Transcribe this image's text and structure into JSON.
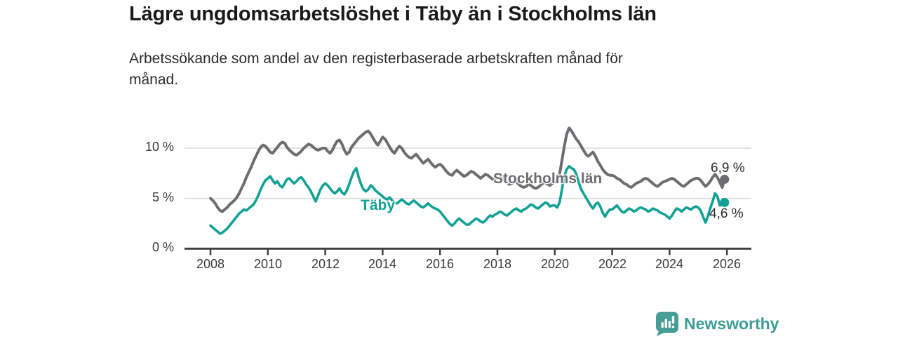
{
  "header": {
    "title": "Lägre ungdomsarbetslöshet i Täby än i Stockholms län",
    "subtitle": "Arbetssökande som andel av den registerbaserade arbetskraften månad för\nmånad."
  },
  "chart": {
    "y_axis": {
      "values": [
        0,
        5,
        10
      ],
      "labels": [
        "0 %",
        "5 %",
        "10 %"
      ]
    },
    "x_axis": {
      "ticks": [
        2008,
        2010,
        2012,
        2014,
        2016,
        2018,
        2020,
        2022,
        2024,
        2026
      ]
    },
    "series_labels": {
      "stockholm": "Stockholms län",
      "taby": "Täby"
    },
    "end_labels": {
      "stockholm": "6,9 %",
      "taby": "4,6 %"
    }
  },
  "theme": {
    "stockholm_color": "#6D6D71",
    "taby_color": "#13A195",
    "grid_color": "#DCDCDC",
    "axis_color": "#3F3F3F",
    "text_color": "#3A3A3A",
    "brand_color": "#469E97"
  },
  "footer": {
    "brand": "Newsworthy"
  },
  "chart_data": {
    "type": "line",
    "title": "Lägre ungdomsarbetslöshet i Täby än i Stockholms län",
    "subtitle": "Arbetssökande som andel av den registerbaserade arbetskraften månad för månad.",
    "unit": "%",
    "frequency": "monthly",
    "x_start": "2008-01",
    "x_end": "2025-12",
    "xlim": [
      2007.1,
      2026.9
    ],
    "ylim": [
      0,
      12.5
    ],
    "y_ticks": [
      0,
      5,
      10
    ],
    "x_ticks": [
      2008,
      2010,
      2012,
      2014,
      2016,
      2018,
      2020,
      2022,
      2024,
      2026
    ],
    "grid": true,
    "legend_position": "inline-labels",
    "latest_values": {
      "Stockholms län": 6.9,
      "Täby": 4.6
    },
    "series": [
      {
        "name": "Stockholms län",
        "color": "#6D6D71",
        "values": [
          5.0,
          4.8,
          4.5,
          4.1,
          3.8,
          3.7,
          3.9,
          4.1,
          4.4,
          4.6,
          4.8,
          5.1,
          5.5,
          6.0,
          6.5,
          7.1,
          7.6,
          8.1,
          8.7,
          9.2,
          9.7,
          10.1,
          10.3,
          10.2,
          9.9,
          9.6,
          9.5,
          9.8,
          10.1,
          10.4,
          10.6,
          10.5,
          10.1,
          9.8,
          9.6,
          9.4,
          9.3,
          9.5,
          9.7,
          10.0,
          10.2,
          10.4,
          10.3,
          10.1,
          9.9,
          9.8,
          9.9,
          10.0,
          10.0,
          9.7,
          9.5,
          9.8,
          10.3,
          10.7,
          10.8,
          10.4,
          9.8,
          9.4,
          9.6,
          10.1,
          10.4,
          10.7,
          11.0,
          11.2,
          11.4,
          11.6,
          11.7,
          11.4,
          11.0,
          10.6,
          10.3,
          10.7,
          11.1,
          10.9,
          10.5,
          10.1,
          9.7,
          9.5,
          9.9,
          10.2,
          10.0,
          9.6,
          9.3,
          9.1,
          9.0,
          9.2,
          9.4,
          9.1,
          8.8,
          8.5,
          8.7,
          8.9,
          8.6,
          8.3,
          8.1,
          8.3,
          8.4,
          8.2,
          7.9,
          7.6,
          7.4,
          7.3,
          7.6,
          7.8,
          7.6,
          7.4,
          7.2,
          7.3,
          7.5,
          7.7,
          7.6,
          7.4,
          7.2,
          7.0,
          7.2,
          7.4,
          7.3,
          7.1,
          6.9,
          6.8,
          7.0,
          7.1,
          7.0,
          6.8,
          6.6,
          6.4,
          6.5,
          6.7,
          6.6,
          6.4,
          6.2,
          6.1,
          6.2,
          6.4,
          6.3,
          6.1,
          6.0,
          6.1,
          6.3,
          6.5,
          6.6,
          6.4,
          6.3,
          6.5,
          6.6,
          6.8,
          7.4,
          8.8,
          10.2,
          11.4,
          12.0,
          11.7,
          11.3,
          10.9,
          10.6,
          10.2,
          9.8,
          9.4,
          9.2,
          9.4,
          9.6,
          9.2,
          8.7,
          8.3,
          7.9,
          7.6,
          7.4,
          7.3,
          7.3,
          7.2,
          7.0,
          6.9,
          6.7,
          6.5,
          6.4,
          6.2,
          6.1,
          6.3,
          6.5,
          6.6,
          6.7,
          6.9,
          7.0,
          6.9,
          6.7,
          6.5,
          6.3,
          6.2,
          6.4,
          6.6,
          6.7,
          6.8,
          6.9,
          7.0,
          6.9,
          6.7,
          6.5,
          6.3,
          6.2,
          6.4,
          6.6,
          6.8,
          6.9,
          7.0,
          7.0,
          6.8,
          6.5,
          6.2,
          6.4,
          6.7,
          7.1,
          7.4,
          7.1,
          6.6,
          6.1,
          6.9
        ]
      },
      {
        "name": "Täby",
        "color": "#13A195",
        "values": [
          2.3,
          2.1,
          1.9,
          1.7,
          1.5,
          1.6,
          1.8,
          2.0,
          2.3,
          2.6,
          2.9,
          3.2,
          3.5,
          3.7,
          3.9,
          3.8,
          4.0,
          4.2,
          4.4,
          4.8,
          5.3,
          5.9,
          6.4,
          6.8,
          7.0,
          7.2,
          6.8,
          6.5,
          6.7,
          6.3,
          6.1,
          6.5,
          6.9,
          7.0,
          6.7,
          6.5,
          6.7,
          7.0,
          7.1,
          6.8,
          6.4,
          6.1,
          5.7,
          5.2,
          4.7,
          5.3,
          5.9,
          6.3,
          6.5,
          6.3,
          6.0,
          5.7,
          5.5,
          5.7,
          6.0,
          5.6,
          5.4,
          5.8,
          6.4,
          7.1,
          7.7,
          8.0,
          7.1,
          6.4,
          5.9,
          5.7,
          5.9,
          6.3,
          6.1,
          5.8,
          5.6,
          5.4,
          5.2,
          5.0,
          4.9,
          5.1,
          4.8,
          4.6,
          4.5,
          4.7,
          4.9,
          4.7,
          4.5,
          4.4,
          4.6,
          4.8,
          4.6,
          4.4,
          4.2,
          4.1,
          4.3,
          4.5,
          4.3,
          4.1,
          4.0,
          3.9,
          3.7,
          3.4,
          3.1,
          2.8,
          2.5,
          2.3,
          2.5,
          2.8,
          3.0,
          2.8,
          2.6,
          2.4,
          2.4,
          2.6,
          2.8,
          3.0,
          2.9,
          2.7,
          2.6,
          2.8,
          3.1,
          3.3,
          3.2,
          3.4,
          3.5,
          3.7,
          3.6,
          3.4,
          3.3,
          3.5,
          3.7,
          3.9,
          4.0,
          3.8,
          3.7,
          3.9,
          4.0,
          4.2,
          4.4,
          4.3,
          4.1,
          4.0,
          4.2,
          4.4,
          4.6,
          4.5,
          4.2,
          4.3,
          4.3,
          4.1,
          4.6,
          5.9,
          7.2,
          7.9,
          8.2,
          8.0,
          7.9,
          7.4,
          6.6,
          5.9,
          5.5,
          5.1,
          4.7,
          4.3,
          4.0,
          4.4,
          4.6,
          4.2,
          3.6,
          3.2,
          3.6,
          3.9,
          3.9,
          4.1,
          4.3,
          4.0,
          3.7,
          3.6,
          3.8,
          4.0,
          3.9,
          3.7,
          3.8,
          4.0,
          4.1,
          4.0,
          3.9,
          3.7,
          3.8,
          4.0,
          3.9,
          3.8,
          3.6,
          3.5,
          3.4,
          3.2,
          3.0,
          3.3,
          3.7,
          4.0,
          3.9,
          3.7,
          3.9,
          4.1,
          4.0,
          3.9,
          4.1,
          4.2,
          4.1,
          3.8,
          3.2,
          2.6,
          3.2,
          4.0,
          4.7,
          5.5,
          5.2,
          4.3,
          4.4,
          4.6
        ]
      }
    ]
  }
}
